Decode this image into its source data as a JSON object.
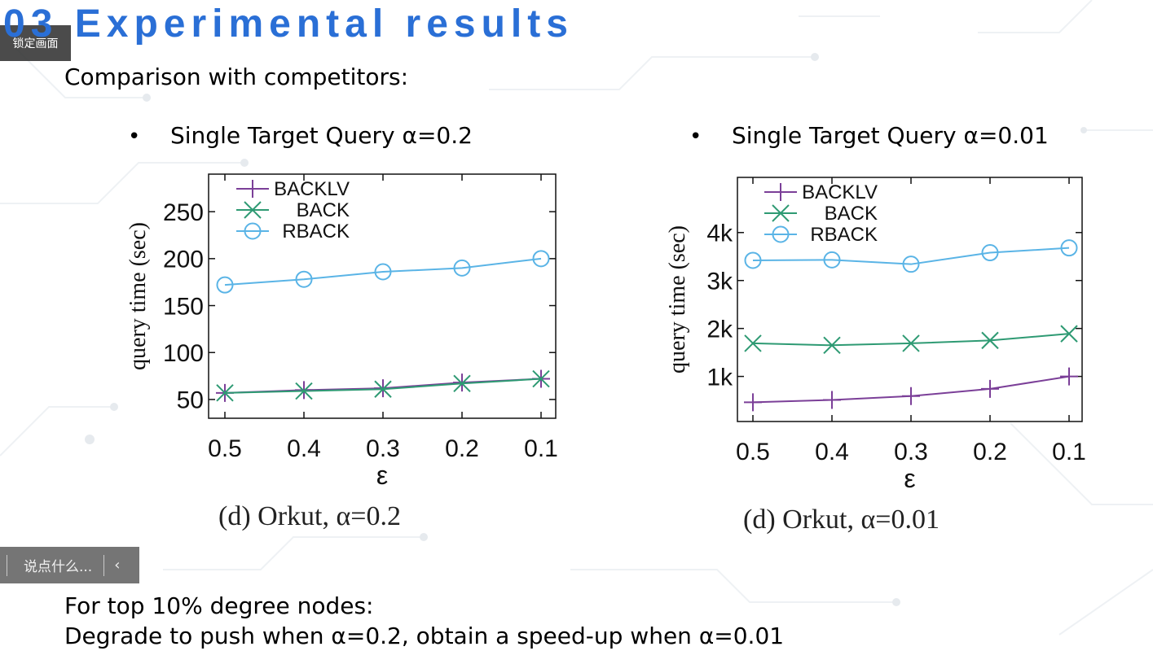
{
  "slide": {
    "title": "03 Experimental results",
    "subtitle": "Comparison with competitors:",
    "footer_line1": "For top 10% degree nodes:",
    "footer_line2": "Degrade to push when α=0.2, obtain a speed-up when α=0.01"
  },
  "overlay": {
    "lock_label": "锁定画面",
    "comment_placeholder": "说点什么...",
    "collapse_glyph": "‹"
  },
  "panels": [
    {
      "bullet": "•",
      "heading": "Single Target Query α=0.2",
      "caption": "(d)  Orkut, α=0.2"
    },
    {
      "bullet": "•",
      "heading": "Single Target Query α=0.01",
      "caption": "(d)  Orkut, α=0.01"
    }
  ],
  "chart_data": [
    {
      "type": "line",
      "title": "",
      "xlabel": "ε",
      "ylabel": "query time (sec)",
      "x": [
        "0.5",
        "0.4",
        "0.3",
        "0.2",
        "0.1"
      ],
      "ylim": [
        30,
        290
      ],
      "yticks": [
        50,
        100,
        150,
        200,
        250
      ],
      "ytick_labels": [
        "50",
        "100",
        "150",
        "200",
        "250"
      ],
      "legend_position": "top-left",
      "series": [
        {
          "name": "BACKLV",
          "marker": "plus",
          "color": "#7b3f98",
          "values": [
            57,
            60,
            62,
            68,
            72
          ]
        },
        {
          "name": "BACK",
          "marker": "x",
          "color": "#2e9a73",
          "values": [
            57,
            59,
            61,
            67,
            72
          ]
        },
        {
          "name": "RBACK",
          "marker": "circle",
          "color": "#5ab4e6",
          "values": [
            172,
            178,
            186,
            190,
            200
          ]
        }
      ]
    },
    {
      "type": "line",
      "title": "",
      "xlabel": "ε",
      "ylabel": "query time (sec)",
      "x": [
        "0.5",
        "0.4",
        "0.3",
        "0.2",
        "0.1"
      ],
      "ylim": [
        60,
        5150
      ],
      "yticks": [
        1000,
        2000,
        3000,
        4000
      ],
      "ytick_labels": [
        "1k",
        "2k",
        "3k",
        "4k"
      ],
      "legend_position": "top-left",
      "series": [
        {
          "name": "BACKLV",
          "marker": "plus",
          "color": "#7b3f98",
          "values": [
            460,
            510,
            590,
            740,
            1000
          ]
        },
        {
          "name": "BACK",
          "marker": "x",
          "color": "#2e9a73",
          "values": [
            1690,
            1650,
            1690,
            1750,
            1890
          ]
        },
        {
          "name": "RBACK",
          "marker": "circle",
          "color": "#5ab4e6",
          "values": [
            3420,
            3430,
            3340,
            3580,
            3680
          ]
        }
      ]
    }
  ]
}
